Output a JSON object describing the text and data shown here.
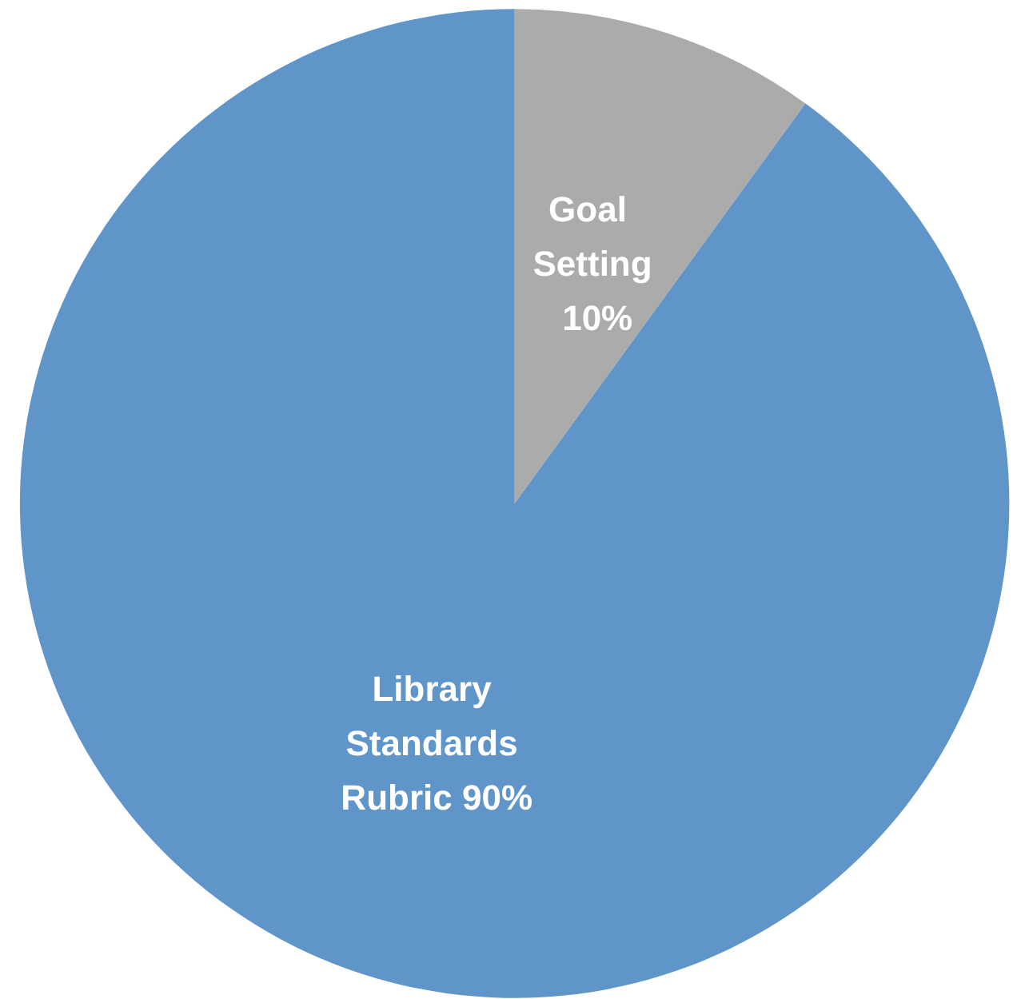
{
  "chart_data": {
    "type": "pie",
    "categories": [
      "Goal Setting",
      "Library Standards Rubric"
    ],
    "values": [
      10,
      90
    ],
    "value_labels": [
      "10%",
      "90%"
    ],
    "colors": [
      "#ababab",
      "#5f95c8"
    ],
    "legend": false
  }
}
